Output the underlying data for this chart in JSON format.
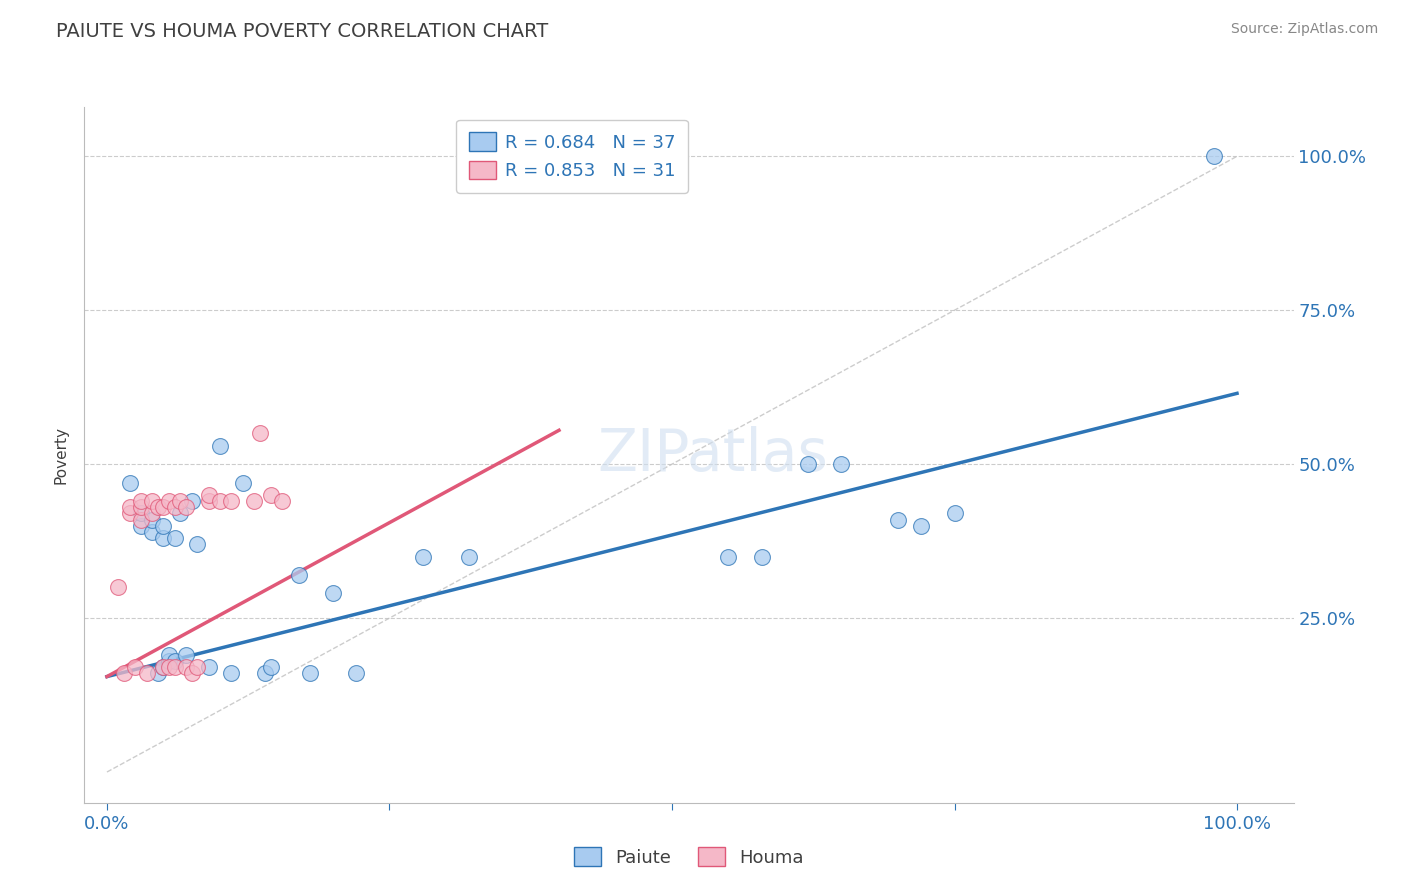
{
  "title": "PAIUTE VS HOUMA POVERTY CORRELATION CHART",
  "source": "Source: ZipAtlas.com",
  "ylabel": "Poverty",
  "xlim": [
    -0.02,
    1.05
  ],
  "ylim": [
    -0.05,
    1.08
  ],
  "xticks": [
    0,
    0.25,
    0.5,
    0.75,
    1.0
  ],
  "xticklabels": [
    "0.0%",
    "",
    "",
    "",
    "100.0%"
  ],
  "ytick_positions": [
    0.25,
    0.5,
    0.75,
    1.0
  ],
  "ytick_labels": [
    "25.0%",
    "50.0%",
    "75.0%",
    "100.0%"
  ],
  "paiute_R": 0.684,
  "paiute_N": 37,
  "houma_R": 0.853,
  "houma_N": 31,
  "paiute_color": "#A8CBF0",
  "houma_color": "#F5B8C8",
  "paiute_line_color": "#2E75B6",
  "houma_line_color": "#E05878",
  "ref_line_color": "#C0C0C0",
  "legend_text_color": "#2E75B6",
  "title_color": "#404040",
  "background_color": "#FFFFFF",
  "grid_color": "#CCCCCC",
  "paiute_x": [
    0.02,
    0.03,
    0.03,
    0.04,
    0.04,
    0.045,
    0.05,
    0.05,
    0.05,
    0.055,
    0.055,
    0.06,
    0.06,
    0.065,
    0.07,
    0.075,
    0.08,
    0.09,
    0.1,
    0.11,
    0.12,
    0.14,
    0.145,
    0.17,
    0.18,
    0.2,
    0.22,
    0.28,
    0.32,
    0.55,
    0.58,
    0.62,
    0.65,
    0.7,
    0.72,
    0.75,
    0.98
  ],
  "paiute_y": [
    0.47,
    0.4,
    0.42,
    0.39,
    0.41,
    0.16,
    0.38,
    0.4,
    0.17,
    0.18,
    0.19,
    0.18,
    0.38,
    0.42,
    0.19,
    0.44,
    0.37,
    0.17,
    0.53,
    0.16,
    0.47,
    0.16,
    0.17,
    0.32,
    0.16,
    0.29,
    0.16,
    0.35,
    0.35,
    0.35,
    0.35,
    0.5,
    0.5,
    0.41,
    0.4,
    0.42,
    1.0
  ],
  "houma_x": [
    0.01,
    0.015,
    0.02,
    0.02,
    0.025,
    0.03,
    0.03,
    0.03,
    0.035,
    0.04,
    0.04,
    0.045,
    0.05,
    0.05,
    0.055,
    0.055,
    0.06,
    0.06,
    0.065,
    0.07,
    0.07,
    0.075,
    0.08,
    0.09,
    0.09,
    0.1,
    0.11,
    0.13,
    0.135,
    0.145,
    0.155
  ],
  "houma_y": [
    0.3,
    0.16,
    0.42,
    0.43,
    0.17,
    0.41,
    0.43,
    0.44,
    0.16,
    0.42,
    0.44,
    0.43,
    0.17,
    0.43,
    0.44,
    0.17,
    0.17,
    0.43,
    0.44,
    0.43,
    0.17,
    0.16,
    0.17,
    0.44,
    0.45,
    0.44,
    0.44,
    0.44,
    0.55,
    0.45,
    0.44
  ],
  "paiute_line_x": [
    0.0,
    1.0
  ],
  "paiute_line_y": [
    0.155,
    0.615
  ],
  "houma_line_x": [
    0.0,
    0.4
  ],
  "houma_line_y": [
    0.155,
    0.555
  ],
  "ref_line_x": [
    0.0,
    1.0
  ],
  "ref_line_y": [
    0.0,
    1.0
  ]
}
